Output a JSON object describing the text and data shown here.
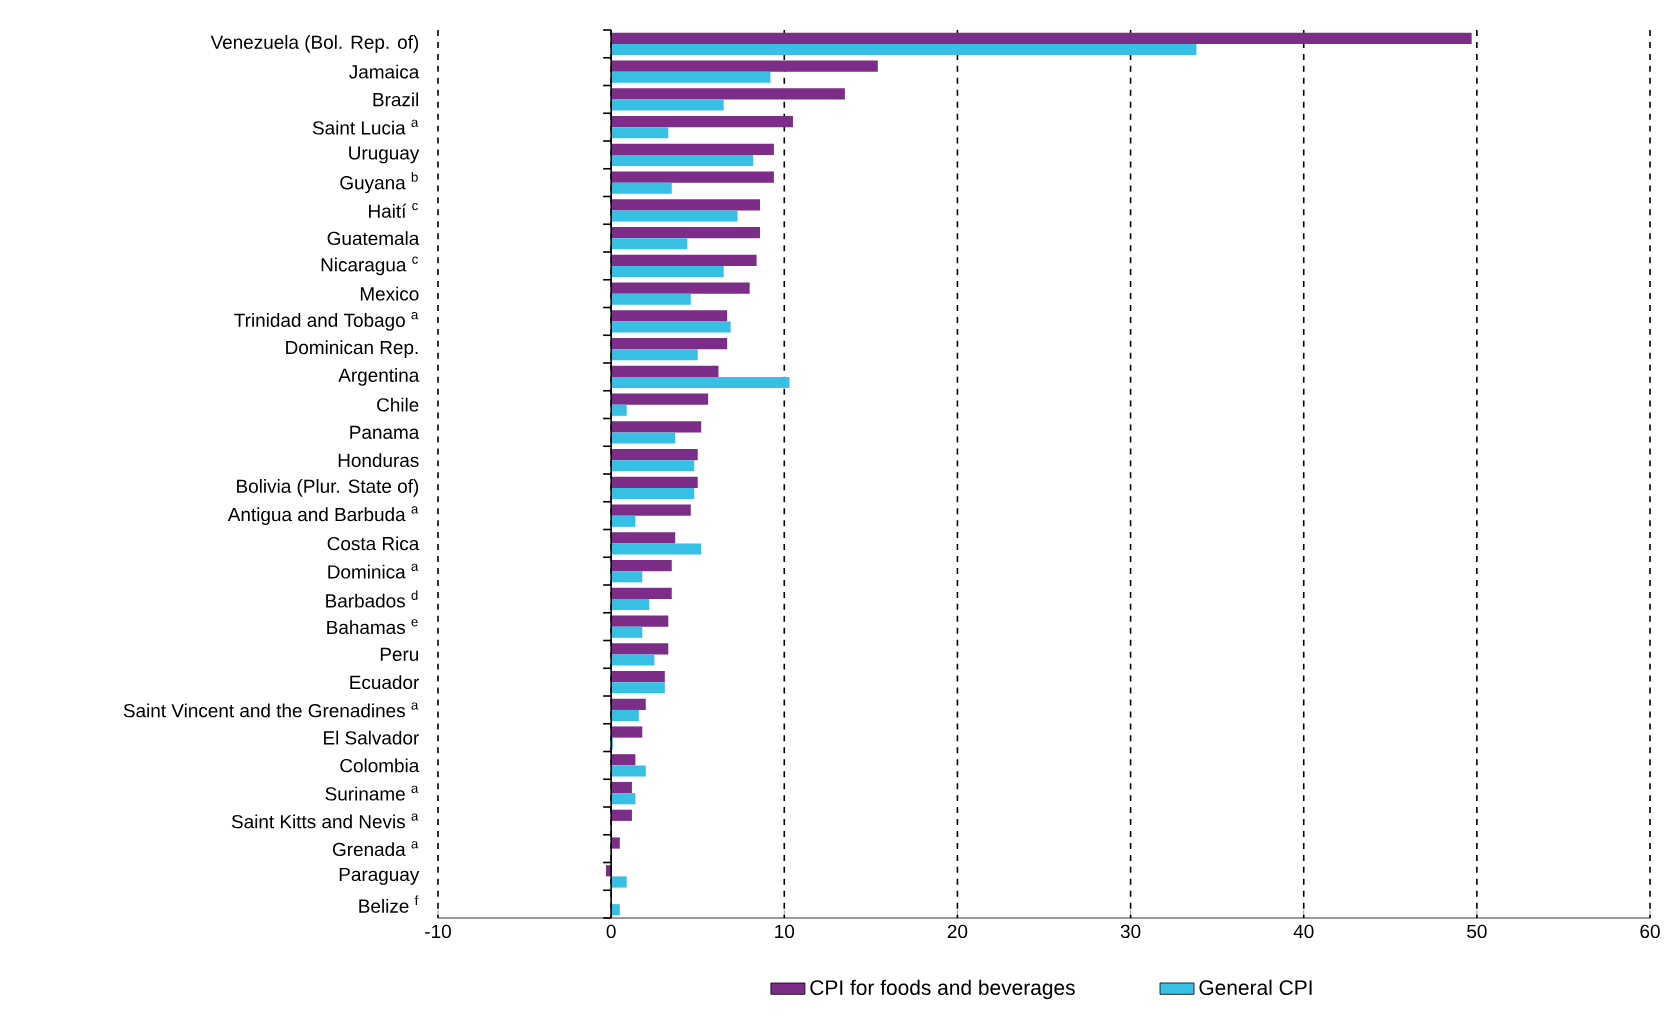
{
  "chart_data": {
    "type": "bar",
    "orientation": "horizontal",
    "categories": [
      "Venezuela (Bol. Rep. of)",
      "Jamaica",
      "Brazil",
      "Saint Lucia $^{a}$",
      "Uruguay",
      "Guyana $^{b}$",
      "Haití $^{c}$",
      "Guatemala",
      "Nicaragua $^{c}$",
      "Mexico",
      "Trinidad and Tobago $^{a}$",
      "Dominican Rep.",
      "Argentina",
      "Chile",
      "Panama",
      "Honduras",
      "Bolivia (Plur. State of)",
      "Antigua and Barbuda $^{a}$",
      "Costa Rica",
      "Dominica $^{a}$",
      "Barbados $^{d}$",
      "Bahamas $^{e}$",
      "Peru",
      "Ecuador",
      "Saint Vincent and the Grenadines $^{a}$",
      "El Salvador",
      "Colombia",
      "Suriname $^{a}$",
      "Saint Kitts and Nevis $^{a}$",
      "Grenada $^{a}$",
      "Paraguay",
      "Belize $^{f}$"
    ],
    "series": [
      {
        "name": "CPI for foods and beverages",
        "color": "#7b2d87",
        "values": [
          49.7,
          15.4,
          13.5,
          10.5,
          9.4,
          9.4,
          8.6,
          8.6,
          8.4,
          8.0,
          6.7,
          6.7,
          6.2,
          5.6,
          5.2,
          5.0,
          5.0,
          4.6,
          3.7,
          3.5,
          3.5,
          3.3,
          3.3,
          3.1,
          2.0,
          1.8,
          1.4,
          1.2,
          1.2,
          0.5,
          -0.3,
          0.0
        ]
      },
      {
        "name": "General CPI",
        "color": "#37c0e3",
        "values": [
          33.8,
          9.2,
          6.5,
          3.3,
          8.2,
          3.5,
          7.3,
          4.4,
          6.5,
          4.6,
          6.9,
          5.0,
          10.3,
          0.9,
          3.7,
          4.8,
          4.8,
          1.4,
          5.2,
          1.8,
          2.2,
          1.8,
          2.5,
          3.1,
          1.6,
          0.1,
          2.0,
          1.4,
          0.0,
          0.0,
          0.9,
          0.5
        ]
      }
    ],
    "xlim": [
      -10,
      60
    ],
    "xticks": [
      -10,
      0,
      10,
      20,
      30,
      40,
      50,
      60
    ],
    "grid": "x",
    "legend": "bottom"
  }
}
